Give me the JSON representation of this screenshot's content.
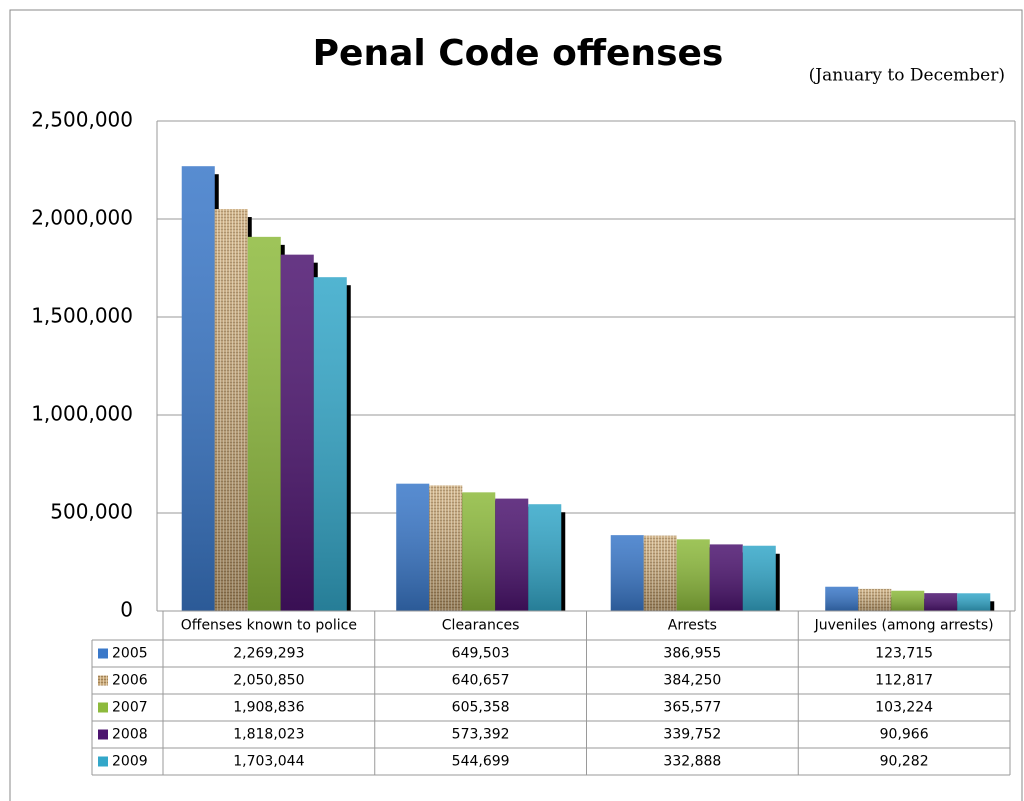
{
  "chart_data": {
    "type": "bar",
    "title": "Penal Code offenses",
    "subtitle": "(January to December)",
    "categories": [
      "Offenses known to police",
      "Clearances",
      "Arrests",
      "Juveniles (among arrests)"
    ],
    "series": [
      {
        "name": "2005",
        "color": "#3a78c9",
        "values": [
          2269293,
          649503,
          386955,
          123715
        ],
        "value_labels": [
          "2,269,293",
          "649,503",
          "386,955",
          "123,715"
        ]
      },
      {
        "name": "2006",
        "color": "#c6a678",
        "values": [
          2050850,
          640657,
          384250,
          112817
        ],
        "value_labels": [
          "2,050,850",
          "640,657",
          "384,250",
          "112,817"
        ]
      },
      {
        "name": "2007",
        "color": "#8dba3c",
        "values": [
          1908836,
          605358,
          365577,
          103224
        ],
        "value_labels": [
          "1,908,836",
          "605,358",
          "365,577",
          "103,224"
        ]
      },
      {
        "name": "2008",
        "color": "#4c146f",
        "values": [
          1818023,
          573392,
          339752,
          90966
        ],
        "value_labels": [
          "1,818,023",
          "573,392",
          "339,752",
          "90,966"
        ]
      },
      {
        "name": "2009",
        "color": "#33a7c9",
        "values": [
          1703044,
          544699,
          332888,
          90282
        ],
        "value_labels": [
          "1,703,044",
          "544,699",
          "332,888",
          "90,282"
        ]
      }
    ],
    "ylim": [
      0,
      2500000
    ],
    "yticks": [
      0,
      {
        "value": 500000,
        "label": "500,000"
      },
      {
        "value": 1000000,
        "label": "1,000,000"
      },
      {
        "value": 1500000,
        "label": "1,500,000"
      },
      {
        "value": 2000000,
        "label": "2,000,000"
      },
      {
        "value": 2500000,
        "label": "2,500,000"
      }
    ],
    "grid": true
  }
}
